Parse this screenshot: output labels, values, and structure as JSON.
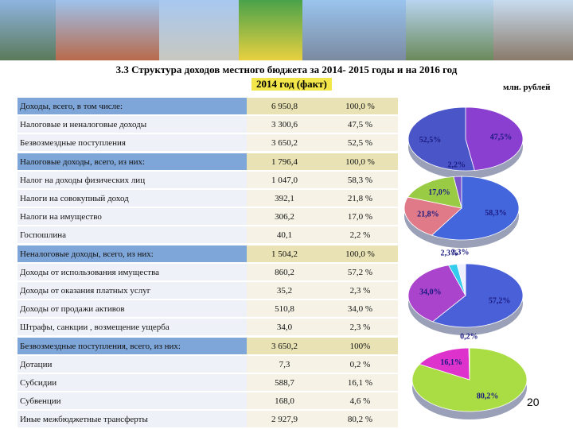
{
  "title": "3.3 Структура доходов местного бюджета за 2014- 2015 годы и на 2016 год",
  "subtitle": "2014 год (факт)",
  "units": "млн. рублей",
  "page_number": "20",
  "table": {
    "rows": [
      [
        "Доходы, всего, в том числе:",
        "6 950,8",
        "100,0 %"
      ],
      [
        "Налоговые и неналоговые доходы",
        "3 300,6",
        "47,5 %"
      ],
      [
        "Безвозмездные поступления",
        "3 650,2",
        "52,5 %"
      ],
      [
        "Налоговые доходы, всего, из них:",
        "1 796,4",
        "100,0 %"
      ],
      [
        "Налог на доходы физических лиц",
        "1 047,0",
        "58,3 %"
      ],
      [
        "Налоги на совокупный доход",
        "392,1",
        "21,8 %"
      ],
      [
        "Налоги на имущество",
        "306,2",
        "17,0 %"
      ],
      [
        "Госпошлина",
        "40,1",
        "2,2 %"
      ],
      [
        "Неналоговые доходы, всего, из них:",
        "1 504,2",
        "100,0 %"
      ],
      [
        "Доходы от использования имущества",
        "860,2",
        "57,2 %"
      ],
      [
        "Доходы от оказания платных услуг",
        "35,2",
        "2,3 %"
      ],
      [
        "Доходы от продажи активов",
        "510,8",
        "34,0 %"
      ],
      [
        "Штрафы, санкции , возмещение ущерба",
        "34,0",
        "2,3 %"
      ],
      [
        "Безвозмездные поступления, всего, из них:",
        "3 650,2",
        "100%"
      ],
      [
        "Дотации",
        "7,3",
        "0,2 %"
      ],
      [
        "Субсидии",
        "588,7",
        "16,1 %"
      ],
      [
        "Субвенции",
        "168,0",
        "4,6 %"
      ],
      [
        "Иные межбюджетные трансферты",
        "2 927,9",
        "80,2 %"
      ]
    ]
  },
  "pies": [
    {
      "slices": [
        {
          "value": 47.5,
          "label": "47,5%",
          "color": "#8a3fd0"
        },
        {
          "value": 52.5,
          "label": "52,5%",
          "color": "#4a55c8"
        }
      ]
    },
    {
      "slices": [
        {
          "value": 58.3,
          "label": "58,3%",
          "color": "#4466dd"
        },
        {
          "value": 21.8,
          "label": "21,8%",
          "color": "#e07a88"
        },
        {
          "value": 17.0,
          "label": "17,0%",
          "color": "#9acb45"
        },
        {
          "value": 2.2,
          "label": "2,2%",
          "color": "#7a55cc"
        }
      ]
    },
    {
      "slices": [
        {
          "value": 57.2,
          "label": "57,2%",
          "color": "#4a60d8"
        },
        {
          "value": 34.0,
          "label": "34,0%",
          "color": "#aa44cc"
        },
        {
          "value": 2.3,
          "label": "2,3%",
          "color": "#33ccee"
        },
        {
          "value": 2.3,
          "label": "2,3%",
          "color": "#eef0ff"
        }
      ]
    },
    {
      "slices": [
        {
          "value": 80.2,
          "label": "80,2%",
          "color": "#aadd44"
        },
        {
          "value": 16.1,
          "label": "16,1%",
          "color": "#dd33cc"
        },
        {
          "value": 0.2,
          "label": "0,2%",
          "color": "#eeee55"
        }
      ]
    }
  ]
}
